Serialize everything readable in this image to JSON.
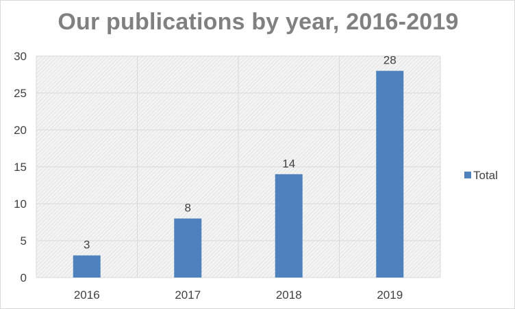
{
  "chart_data": {
    "type": "bar",
    "title": "Our publications by year, 2016-2019",
    "categories": [
      "2016",
      "2017",
      "2018",
      "2019"
    ],
    "series": [
      {
        "name": "Total",
        "values": [
          3,
          8,
          14,
          28
        ]
      }
    ],
    "ylim": [
      0,
      30
    ],
    "yticks": [
      0,
      5,
      10,
      15,
      20,
      25,
      30
    ],
    "grid": true,
    "legend": "right",
    "colors": {
      "bar": "#4f81bd",
      "grid": "#d9d9d9",
      "text": "#404040",
      "title": "#808080"
    }
  }
}
